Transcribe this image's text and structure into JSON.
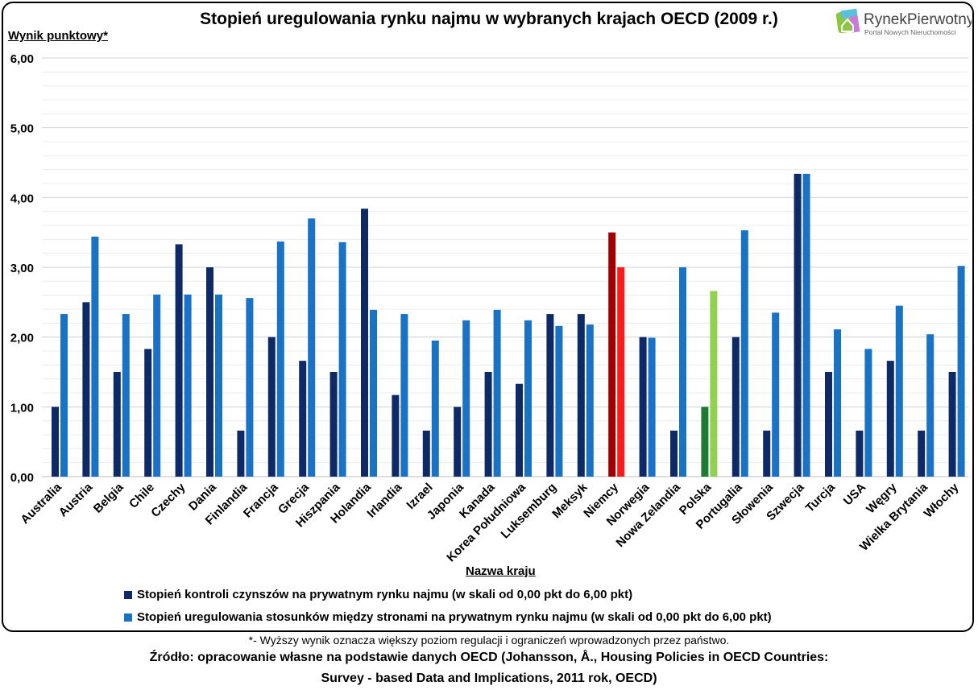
{
  "chart_data": {
    "type": "bar",
    "title": "Stopień uregulowania rynku najmu w wybranych krajach OECD (2009 r.)",
    "ylabel": "Wynik punktowy*",
    "xlabel": "Nazwa kraju",
    "ylim": [
      0,
      6
    ],
    "yticks": [
      "0,00",
      "1,00",
      "2,00",
      "3,00",
      "4,00",
      "5,00",
      "6,00"
    ],
    "grid": true,
    "legend_position": "bottom",
    "categories": [
      "Australia",
      "Austria",
      "Belgia",
      "Chile",
      "Czechy",
      "Dania",
      "Finlandia",
      "Francja",
      "Grecja",
      "Hiszpania",
      "Holandia",
      "Irlandia",
      "Izrael",
      "Japonia",
      "Kanada",
      "Korea Południowa",
      "Luksemburg",
      "Meksyk",
      "Niemcy",
      "Norwegia",
      "Nowa Zelandia",
      "Polska",
      "Portugalia",
      "Słowenia",
      "Szwecja",
      "Turcja",
      "USA",
      "Węgry",
      "Wielka Brytania",
      "Włochy"
    ],
    "series": [
      {
        "name": "Stopień kontroli czynszów na prywatnym rynku najmu (w skali od 0,00 pkt do 6,00 pkt)",
        "color": "#0e2a66",
        "values": [
          1.0,
          2.5,
          1.5,
          1.83,
          3.33,
          3.0,
          0.66,
          2.0,
          1.66,
          1.5,
          3.84,
          1.17,
          0.66,
          1.0,
          1.5,
          1.33,
          2.33,
          2.33,
          3.5,
          2.0,
          0.66,
          1.0,
          2.0,
          0.66,
          4.34,
          1.5,
          0.66,
          1.66,
          0.66,
          1.5
        ]
      },
      {
        "name": "Stopień uregulowania stosunków między stronami na prywatnym rynku najmu (w skali od 0,00 pkt do 6,00 pkt)",
        "color": "#1a72c4",
        "values": [
          2.33,
          3.44,
          2.33,
          2.61,
          2.61,
          2.61,
          2.56,
          3.37,
          3.7,
          3.36,
          2.39,
          2.33,
          1.95,
          2.24,
          2.39,
          2.24,
          2.16,
          2.18,
          3.0,
          1.99,
          3.0,
          2.66,
          3.53,
          2.35,
          4.34,
          2.11,
          1.83,
          2.45,
          2.04,
          3.02
        ]
      }
    ],
    "highlights": {
      "Niemcy": {
        "colors": [
          "#a00000",
          "#ff1a1a"
        ]
      },
      "Polska": {
        "colors": [
          "#1e7a34",
          "#92d050"
        ]
      }
    }
  },
  "logo": {
    "brand": "RynekPierwotny",
    "tagline": "Portal Nowych Nieruchomości"
  },
  "footnote": "*- Wyższy wynik oznacza większy poziom regulacji i ograniczeń wprowadzonych przez państwo.",
  "source_line1": "Źródło: opracowanie własne na podstawie danych OECD (Johansson, Å., Housing Policies in OECD Countries:",
  "source_line2": "Survey - based Data and Implications, 2011 rok, OECD)"
}
